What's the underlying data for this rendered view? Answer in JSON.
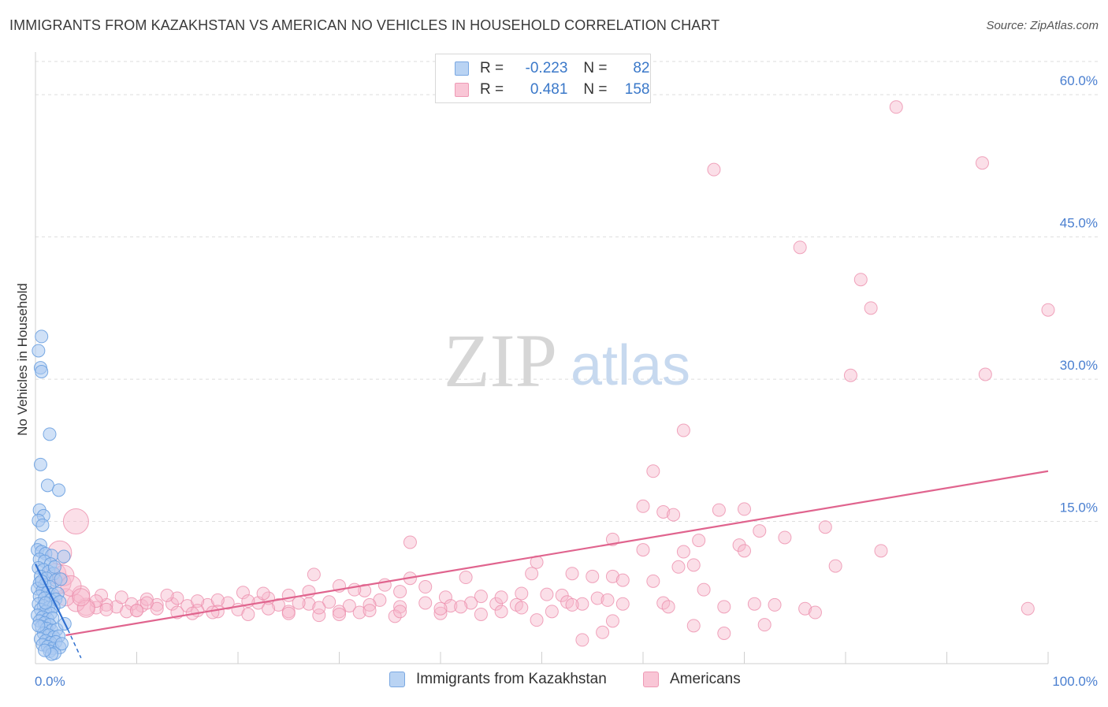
{
  "title": "IMMIGRANTS FROM KAZAKHSTAN VS AMERICAN NO VEHICLES IN HOUSEHOLD CORRELATION CHART",
  "source": "Source: ZipAtlas.com",
  "watermark": {
    "zip": "ZIP",
    "atlas": "atlas"
  },
  "legend_top": {
    "rows": [
      {
        "r_label": "R =",
        "r_value": "-0.223",
        "n_label": "N =",
        "n_value": "82"
      },
      {
        "r_label": "R =",
        "r_value": "0.481",
        "n_label": "N =",
        "n_value": "158"
      }
    ]
  },
  "colors": {
    "blue_fill": "#a9c8f0",
    "blue_edge": "#6aa0e0",
    "blue_line": "#2f6fcf",
    "pink_fill": "#f6b8cb",
    "pink_edge": "#ec8fac",
    "pink_line": "#e0648e",
    "tick_text": "#4a7fd0",
    "grid": "#dedede"
  },
  "chart_data": {
    "type": "scatter",
    "title": "IMMIGRANTS FROM KAZAKHSTAN VS AMERICAN NO VEHICLES IN HOUSEHOLD CORRELATION CHART",
    "xlabel": "",
    "ylabel": "No Vehicles in Household",
    "xlim": [
      0,
      100
    ],
    "ylim": [
      0,
      64
    ],
    "x_tick_labels": [
      "0.0%",
      "100.0%"
    ],
    "y_ticks": [
      15,
      30,
      45,
      60
    ],
    "y_tick_labels": [
      "15.0%",
      "30.0%",
      "45.0%",
      "60.0%"
    ],
    "grid": true,
    "legend": [
      "Immigrants from Kazakhstan",
      "Americans"
    ],
    "series": [
      {
        "name": "Immigrants from Kazakhstan",
        "R": -0.223,
        "N": 82,
        "trend": {
          "x": [
            0.0,
            3.2
          ],
          "y": [
            10.5,
            3.6
          ]
        },
        "trend_dashed": {
          "x": [
            3.2,
            4.5
          ],
          "y": [
            3.6,
            0.6
          ]
        },
        "points": [
          [
            0.6,
            34.5
          ],
          [
            0.3,
            33.0
          ],
          [
            0.5,
            31.2
          ],
          [
            0.6,
            30.8
          ],
          [
            1.4,
            24.2
          ],
          [
            0.5,
            21.0
          ],
          [
            1.2,
            18.8
          ],
          [
            2.3,
            18.3
          ],
          [
            0.4,
            16.2
          ],
          [
            0.8,
            15.6
          ],
          [
            0.3,
            15.1
          ],
          [
            0.7,
            14.6
          ],
          [
            0.5,
            12.5
          ],
          [
            0.2,
            12.0
          ],
          [
            0.6,
            11.8
          ],
          [
            1.0,
            11.6
          ],
          [
            1.6,
            11.4
          ],
          [
            2.8,
            11.3
          ],
          [
            0.4,
            11.0
          ],
          [
            0.9,
            10.8
          ],
          [
            1.5,
            10.5
          ],
          [
            0.3,
            10.1
          ],
          [
            0.8,
            9.9
          ],
          [
            1.3,
            9.7
          ],
          [
            1.8,
            9.5
          ],
          [
            0.5,
            9.2
          ],
          [
            1.1,
            9.0
          ],
          [
            2.0,
            8.8
          ],
          [
            2.5,
            8.9
          ],
          [
            0.4,
            8.5
          ],
          [
            0.9,
            8.3
          ],
          [
            1.4,
            8.1
          ],
          [
            0.2,
            7.9
          ],
          [
            0.7,
            7.7
          ],
          [
            1.2,
            7.5
          ],
          [
            1.7,
            7.3
          ],
          [
            2.2,
            7.4
          ],
          [
            0.4,
            7.1
          ],
          [
            0.9,
            6.9
          ],
          [
            1.5,
            6.7
          ],
          [
            2.0,
            6.8
          ],
          [
            2.4,
            6.5
          ],
          [
            0.3,
            6.3
          ],
          [
            0.8,
            6.1
          ],
          [
            1.3,
            5.9
          ],
          [
            1.8,
            6.0
          ],
          [
            0.5,
            5.7
          ],
          [
            1.0,
            5.5
          ],
          [
            1.5,
            5.3
          ],
          [
            0.2,
            5.1
          ],
          [
            0.7,
            4.9
          ],
          [
            1.2,
            4.7
          ],
          [
            1.7,
            4.8
          ],
          [
            0.4,
            4.5
          ],
          [
            0.9,
            4.3
          ],
          [
            1.4,
            4.1
          ],
          [
            0.6,
            3.9
          ],
          [
            1.1,
            3.7
          ],
          [
            1.6,
            3.5
          ],
          [
            2.1,
            3.6
          ],
          [
            0.8,
            3.2
          ],
          [
            1.3,
            3.0
          ],
          [
            1.8,
            2.8
          ],
          [
            2.3,
            2.9
          ],
          [
            0.5,
            2.6
          ],
          [
            1.0,
            2.4
          ],
          [
            1.5,
            2.2
          ],
          [
            2.0,
            2.3
          ],
          [
            0.7,
            2.0
          ],
          [
            1.2,
            1.8
          ],
          [
            1.7,
            1.6
          ],
          [
            2.4,
            1.7
          ],
          [
            1.4,
            1.3
          ],
          [
            1.9,
            1.1
          ],
          [
            1.6,
            1.0
          ],
          [
            0.9,
            1.4
          ],
          [
            2.6,
            2.1
          ],
          [
            0.3,
            4.0
          ],
          [
            2.9,
            4.2
          ],
          [
            1.0,
            6.4
          ],
          [
            0.6,
            8.7
          ],
          [
            1.9,
            10.2
          ]
        ]
      },
      {
        "name": "Americans",
        "R": 0.481,
        "N": 158,
        "trend": {
          "x": [
            3.0,
            100.0
          ],
          "y": [
            3.0,
            20.3
          ]
        },
        "points": [
          [
            85,
            58.7
          ],
          [
            67,
            52.1
          ],
          [
            93.5,
            52.8
          ],
          [
            75.5,
            43.9
          ],
          [
            81.5,
            40.5
          ],
          [
            82.5,
            37.5
          ],
          [
            100,
            37.3
          ],
          [
            80.5,
            30.4
          ],
          [
            93.8,
            30.5
          ],
          [
            64,
            24.6
          ],
          [
            61,
            20.3
          ],
          [
            60,
            16.6
          ],
          [
            62,
            16.0
          ],
          [
            63,
            15.7
          ],
          [
            67.5,
            16.2
          ],
          [
            70,
            16.3
          ],
          [
            78,
            14.4
          ],
          [
            71.5,
            14.0
          ],
          [
            74,
            13.3
          ],
          [
            65.5,
            13.0
          ],
          [
            57,
            13.1
          ],
          [
            49.5,
            10.7
          ],
          [
            49,
            9.5
          ],
          [
            37,
            12.8
          ],
          [
            69.5,
            12.5
          ],
          [
            60,
            12.0
          ],
          [
            64,
            11.8
          ],
          [
            70,
            11.9
          ],
          [
            83.5,
            11.9
          ],
          [
            65,
            10.4
          ],
          [
            63.5,
            10.2
          ],
          [
            79,
            10.3
          ],
          [
            37,
            9.0
          ],
          [
            42.5,
            9.1
          ],
          [
            53,
            9.5
          ],
          [
            55,
            9.2
          ],
          [
            57,
            9.2
          ],
          [
            58,
            8.8
          ],
          [
            27.5,
            9.4
          ],
          [
            30.0,
            8.2
          ],
          [
            32.5,
            7.7
          ],
          [
            25,
            7.2
          ],
          [
            20.5,
            7.5
          ],
          [
            23,
            6.9
          ],
          [
            40.5,
            7.0
          ],
          [
            44,
            7.1
          ],
          [
            48,
            7.4
          ],
          [
            50.5,
            7.3
          ],
          [
            52,
            7.2
          ],
          [
            36,
            7.6
          ],
          [
            66,
            7.8
          ],
          [
            55.5,
            6.9
          ],
          [
            56.5,
            6.7
          ],
          [
            34,
            6.7
          ],
          [
            29,
            6.5
          ],
          [
            27,
            6.3
          ],
          [
            24,
            6.2
          ],
          [
            22,
            6.4
          ],
          [
            19,
            6.4
          ],
          [
            17,
            6.2
          ],
          [
            15,
            6.1
          ],
          [
            13.5,
            6.3
          ],
          [
            12,
            6.2
          ],
          [
            10.5,
            6.1
          ],
          [
            9.5,
            6.3
          ],
          [
            8,
            6.0
          ],
          [
            7,
            6.2
          ],
          [
            6,
            5.9
          ],
          [
            5,
            6.0
          ],
          [
            4,
            6.4
          ],
          [
            3,
            7.0
          ],
          [
            2.5,
            8.5
          ],
          [
            2.0,
            9.5
          ],
          [
            4.5,
            7.3
          ],
          [
            6.5,
            7.2
          ],
          [
            8.5,
            7.0
          ],
          [
            11,
            6.8
          ],
          [
            14,
            6.9
          ],
          [
            16,
            6.6
          ],
          [
            18,
            6.7
          ],
          [
            21,
            6.6
          ],
          [
            26,
            6.4
          ],
          [
            31,
            6.1
          ],
          [
            33,
            6.2
          ],
          [
            36,
            6.0
          ],
          [
            38.5,
            6.4
          ],
          [
            41,
            6.1
          ],
          [
            43,
            6.4
          ],
          [
            45.5,
            6.3
          ],
          [
            47.5,
            6.2
          ],
          [
            52.5,
            6.5
          ],
          [
            54,
            6.3
          ],
          [
            46,
            5.5
          ],
          [
            44,
            5.2
          ],
          [
            40,
            5.3
          ],
          [
            35.5,
            5.0
          ],
          [
            32,
            5.4
          ],
          [
            30,
            5.5
          ],
          [
            28,
            5.1
          ],
          [
            25,
            5.5
          ],
          [
            23,
            5.8
          ],
          [
            20,
            5.7
          ],
          [
            18,
            5.5
          ],
          [
            16,
            5.6
          ],
          [
            14,
            5.4
          ],
          [
            12,
            5.8
          ],
          [
            10,
            5.6
          ],
          [
            9,
            5.5
          ],
          [
            7,
            5.7
          ],
          [
            6,
            6.6
          ],
          [
            5,
            5.8
          ],
          [
            38.5,
            8.1
          ],
          [
            34.5,
            8.3
          ],
          [
            31.5,
            7.8
          ],
          [
            27,
            7.6
          ],
          [
            22.5,
            7.4
          ],
          [
            13,
            7.2
          ],
          [
            11,
            6.4
          ],
          [
            61,
            8.7
          ],
          [
            62,
            6.4
          ],
          [
            65,
            4.0
          ],
          [
            68,
            3.2
          ],
          [
            72,
            4.1
          ],
          [
            49.5,
            4.6
          ],
          [
            57,
            4.5
          ],
          [
            54,
            2.5
          ],
          [
            56,
            3.3
          ],
          [
            76,
            5.8
          ],
          [
            77,
            5.4
          ],
          [
            73,
            6.2
          ],
          [
            71,
            6.3
          ],
          [
            68,
            6.0
          ],
          [
            62.5,
            6.0
          ],
          [
            58,
            6.3
          ],
          [
            53,
            6.2
          ],
          [
            51,
            5.5
          ],
          [
            48,
            5.9
          ],
          [
            46,
            7.0
          ],
          [
            42,
            6.0
          ],
          [
            40,
            5.8
          ],
          [
            36,
            5.5
          ],
          [
            33,
            5.6
          ],
          [
            30,
            5.2
          ],
          [
            28,
            5.9
          ],
          [
            25,
            5.3
          ],
          [
            21,
            5.2
          ],
          [
            17.5,
            5.4
          ],
          [
            15.5,
            5.3
          ],
          [
            10,
            5.6
          ],
          [
            98,
            5.8
          ],
          [
            4.0,
            15.0
          ],
          [
            2.4,
            11.7
          ],
          [
            2.8,
            9.3
          ],
          [
            3.5,
            8.2
          ],
          [
            4.5,
            7.0
          ]
        ]
      }
    ]
  },
  "legend_bottom": {
    "items": [
      {
        "label": "Immigrants from Kazakhstan"
      },
      {
        "label": "Americans"
      }
    ]
  }
}
